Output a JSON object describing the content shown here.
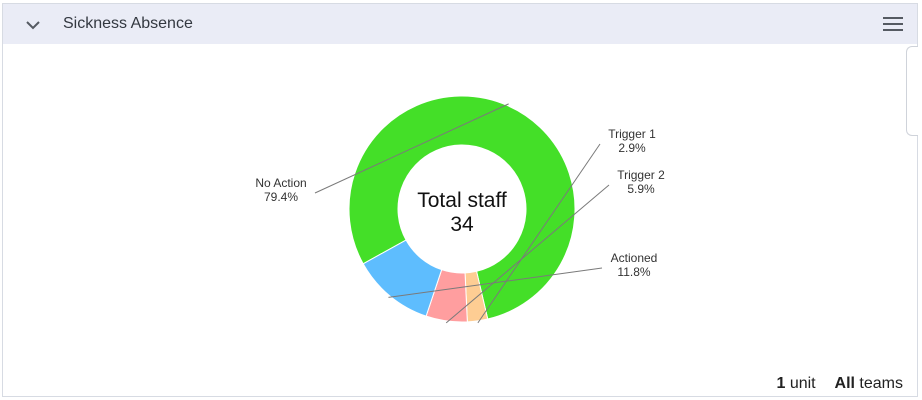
{
  "widget": {
    "title": "Sickness Absence",
    "collapse_icon": "chevron-down-icon",
    "menu_icon": "hamburger-menu-icon"
  },
  "chart_data": {
    "type": "pie",
    "donut": true,
    "center_label": "Total staff",
    "center_value": "34",
    "slices": [
      {
        "label": "No Action",
        "value": 79.4,
        "display": "79.4%",
        "color": "#44df28"
      },
      {
        "label": "Trigger 1",
        "value": 2.9,
        "display": "2.9%",
        "color": "#fecd93"
      },
      {
        "label": "Trigger 2",
        "value": 5.9,
        "display": "5.9%",
        "color": "#ff9e9f"
      },
      {
        "label": "Actioned",
        "value": 11.8,
        "display": "11.8%",
        "color": "#5ebdfe"
      }
    ]
  },
  "footer": {
    "unit_count": "1",
    "unit_label": "unit",
    "teams_count": "All",
    "teams_label": "teams"
  }
}
